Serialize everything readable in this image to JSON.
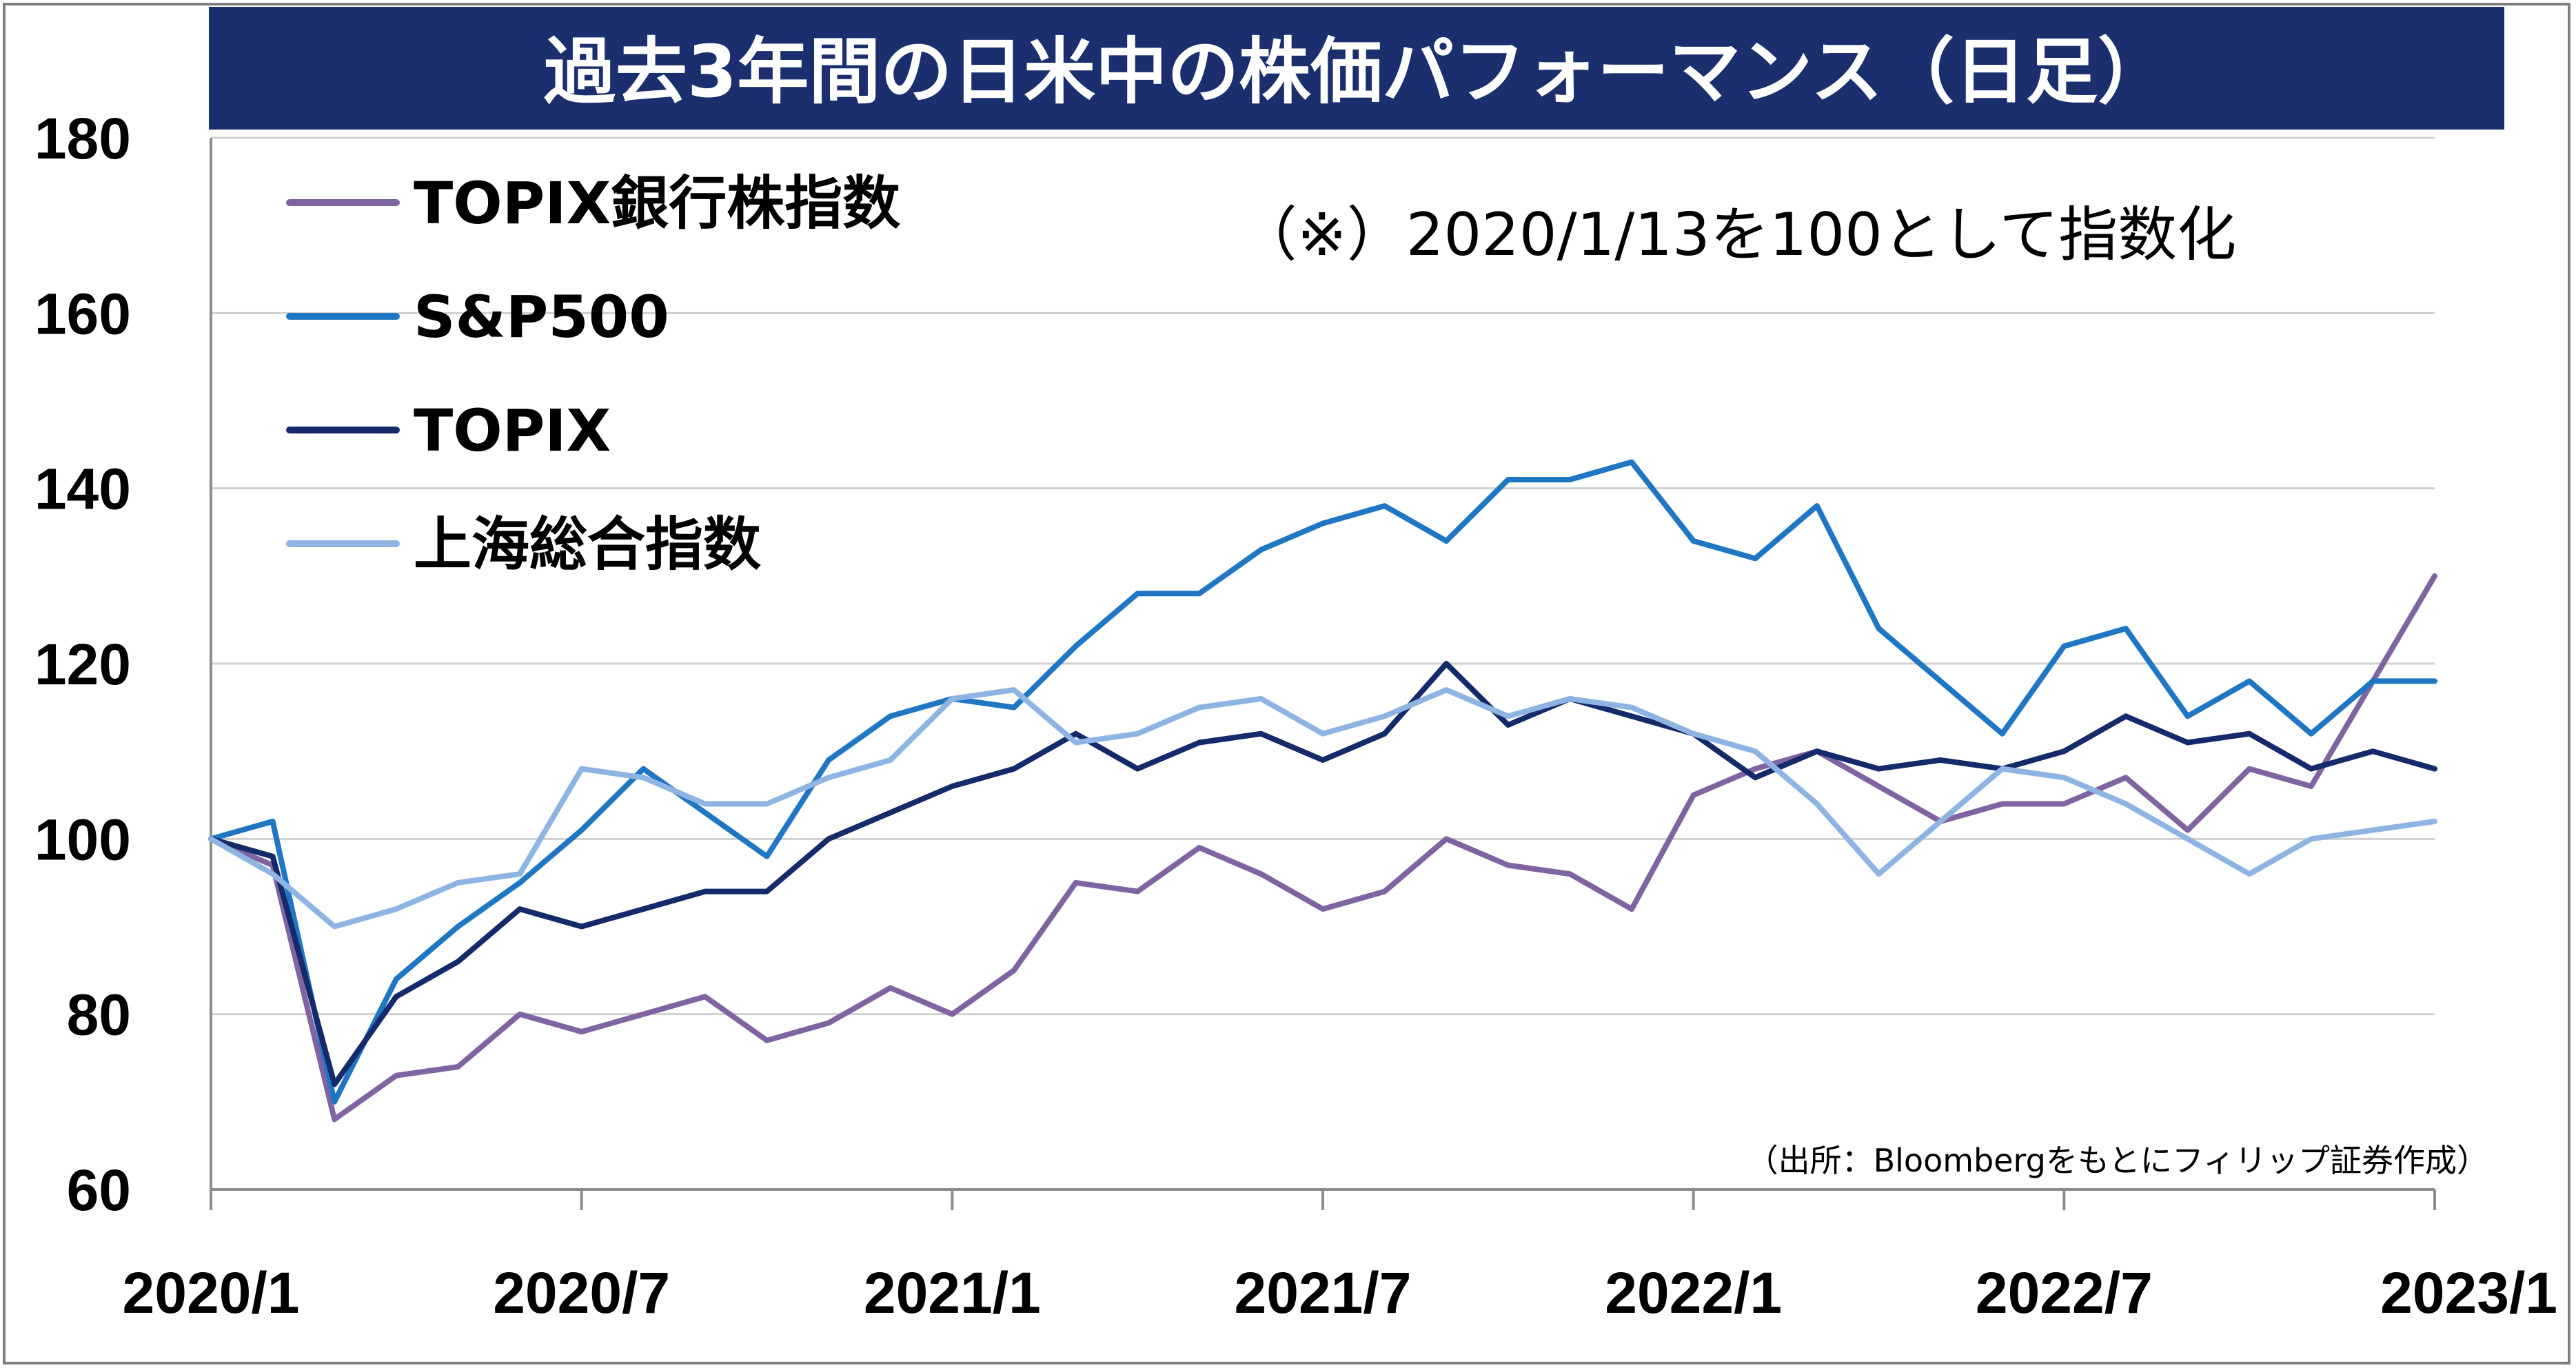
{
  "chart_data": {
    "type": "line",
    "title": "過去3年間の日米中の株価パフォーマンス（日足）",
    "annotation": "（※）2020/1/13を100として指数化",
    "source": "（出所：Bloombergをもとにフィリップ証券作成）",
    "xlabel": "",
    "ylabel": "",
    "ylim": [
      60,
      180
    ],
    "yticks": [
      "60",
      "80",
      "100",
      "120",
      "140",
      "160",
      "180"
    ],
    "xticks": [
      "2020/1",
      "2020/7",
      "2021/1",
      "2021/7",
      "2022/1",
      "2022/7",
      "2023/1"
    ],
    "x": [
      "2020/1",
      "2020/2",
      "2020/3",
      "2020/4",
      "2020/5",
      "2020/6",
      "2020/7",
      "2020/8",
      "2020/9",
      "2020/10",
      "2020/11",
      "2020/12",
      "2021/1",
      "2021/2",
      "2021/3",
      "2021/4",
      "2021/5",
      "2021/6",
      "2021/7",
      "2021/8",
      "2021/9",
      "2021/10",
      "2021/11",
      "2021/12",
      "2022/1",
      "2022/2",
      "2022/3",
      "2022/4",
      "2022/5",
      "2022/6",
      "2022/7",
      "2022/8",
      "2022/9",
      "2022/10",
      "2022/11",
      "2022/12",
      "2023/1"
    ],
    "grid": true,
    "legend_position": "top-left",
    "series": [
      {
        "name": "TOPIX銀行株指数",
        "color": "#8064a2",
        "values": [
          100,
          97,
          68,
          73,
          74,
          80,
          78,
          80,
          82,
          77,
          79,
          83,
          80,
          85,
          95,
          94,
          99,
          96,
          92,
          94,
          100,
          97,
          96,
          92,
          105,
          108,
          110,
          106,
          102,
          104,
          104,
          107,
          101,
          108,
          106,
          118,
          130
        ]
      },
      {
        "name": "S&P500",
        "color": "#1f77c3",
        "values": [
          100,
          102,
          70,
          84,
          90,
          95,
          101,
          108,
          103,
          98,
          109,
          114,
          116,
          115,
          122,
          128,
          128,
          133,
          136,
          138,
          134,
          141,
          141,
          143,
          134,
          132,
          138,
          124,
          118,
          112,
          122,
          124,
          114,
          118,
          112,
          118,
          118
        ]
      },
      {
        "name": "TOPIX",
        "color": "#142a6b",
        "values": [
          100,
          98,
          72,
          82,
          86,
          92,
          90,
          92,
          94,
          94,
          100,
          103,
          106,
          108,
          112,
          108,
          111,
          112,
          109,
          112,
          120,
          113,
          116,
          114,
          112,
          107,
          110,
          108,
          109,
          108,
          110,
          114,
          111,
          112,
          108,
          110,
          108
        ]
      },
      {
        "name": "上海総合指数",
        "color": "#8eb4e3",
        "values": [
          100,
          96,
          90,
          92,
          95,
          96,
          108,
          107,
          104,
          104,
          107,
          109,
          116,
          117,
          111,
          112,
          115,
          116,
          112,
          114,
          117,
          114,
          116,
          115,
          112,
          110,
          104,
          96,
          102,
          108,
          107,
          104,
          100,
          96,
          100,
          101,
          102
        ]
      }
    ]
  }
}
